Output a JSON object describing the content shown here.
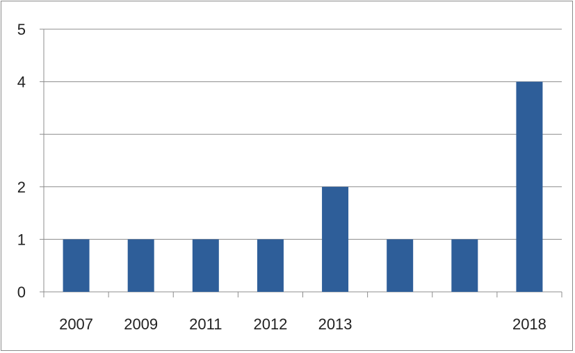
{
  "chart_data": {
    "type": "bar",
    "categories": [
      "2007",
      "2009",
      "2011",
      "2012",
      "2013",
      "",
      "",
      "2018"
    ],
    "values": [
      1,
      1,
      1,
      1,
      2,
      1,
      1,
      4
    ],
    "title": "",
    "xlabel": "",
    "ylabel": "",
    "ylim": [
      0,
      5
    ],
    "y_tick_values": [
      0,
      1,
      2,
      3,
      4,
      5
    ],
    "y_tick_labels": [
      "0",
      "1",
      "2",
      "",
      "4",
      "5"
    ],
    "grid": true,
    "legend": "none",
    "bar_color": "#2E5E99",
    "grid_color": "#8C8C8C"
  }
}
